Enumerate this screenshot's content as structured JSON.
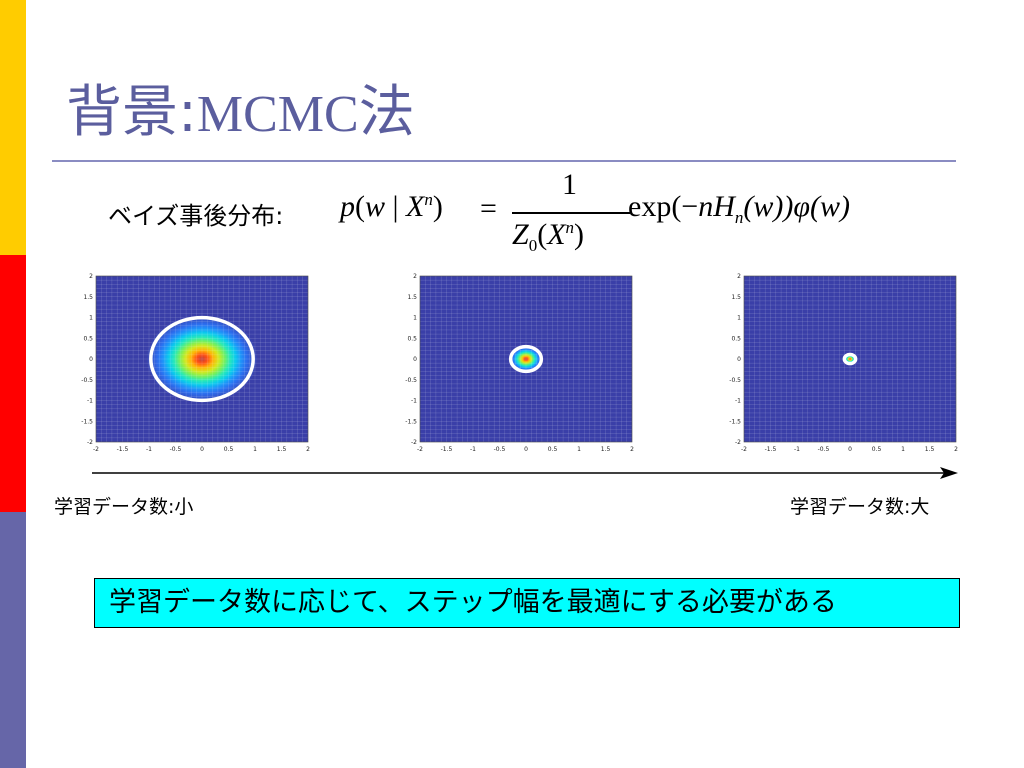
{
  "title": {
    "main": "背景",
    "sep": ":",
    "latin": "MCMC",
    "suffix": "法"
  },
  "formula": {
    "label": "ベイズ事後分布:",
    "lhs_p": "p",
    "lhs_open": "(",
    "lhs_w": "w",
    "lhs_bar": " | ",
    "lhs_X": "X",
    "lhs_n": "n",
    "lhs_close": ")",
    "eq": "=",
    "numerator": "1",
    "den_Z": "Z",
    "den_sub": "0",
    "den_open": "(",
    "den_X": "X",
    "den_n": "n",
    "den_close": ")",
    "rhs_exp": "exp(−",
    "rhs_nH": "nH",
    "rhs_sub": "n",
    "rhs_w": "(w))",
    "rhs_phi": "φ",
    "rhs_end": "(w)"
  },
  "plots": [
    {
      "name": "small-data",
      "y_ticks": [
        "2",
        "1.5",
        "1",
        "0.5",
        "0",
        "-0.5",
        "-1",
        "-1.5",
        "-2"
      ],
      "x_ticks": [
        "-2",
        "-1.5",
        "-1",
        "-0.5",
        "0",
        "0.5",
        "1",
        "1.5",
        "2"
      ],
      "spread": 1.0
    },
    {
      "name": "medium-data",
      "y_ticks": [
        "2",
        "1.5",
        "1",
        "0.5",
        "0",
        "-0.5",
        "-1",
        "-1.5",
        "-2"
      ],
      "x_ticks": [
        "-2",
        "-1.5",
        "-1",
        "-0.5",
        "0",
        "0.5",
        "1",
        "1.5",
        "2"
      ],
      "spread": 0.3
    },
    {
      "name": "large-data",
      "y_ticks": [
        "2",
        "1.5",
        "1",
        "0.5",
        "0",
        "-0.5",
        "-1",
        "-1.5",
        "-2"
      ],
      "x_ticks": [
        "-2",
        "-1.5",
        "-1",
        "-0.5",
        "0",
        "0.5",
        "1",
        "1.5",
        "2"
      ],
      "spread": 0.11
    }
  ],
  "labels": {
    "left": "学習データ数:小",
    "right": "学習データ数:大"
  },
  "callout": "学習データ数に応じて、ステップ幅を最適にする必要がある",
  "colors": {
    "title": "#5b5e9e",
    "callout_bg": "#00ffff",
    "heat_bg": "#3a3fa8",
    "circle": "#ffffff"
  }
}
